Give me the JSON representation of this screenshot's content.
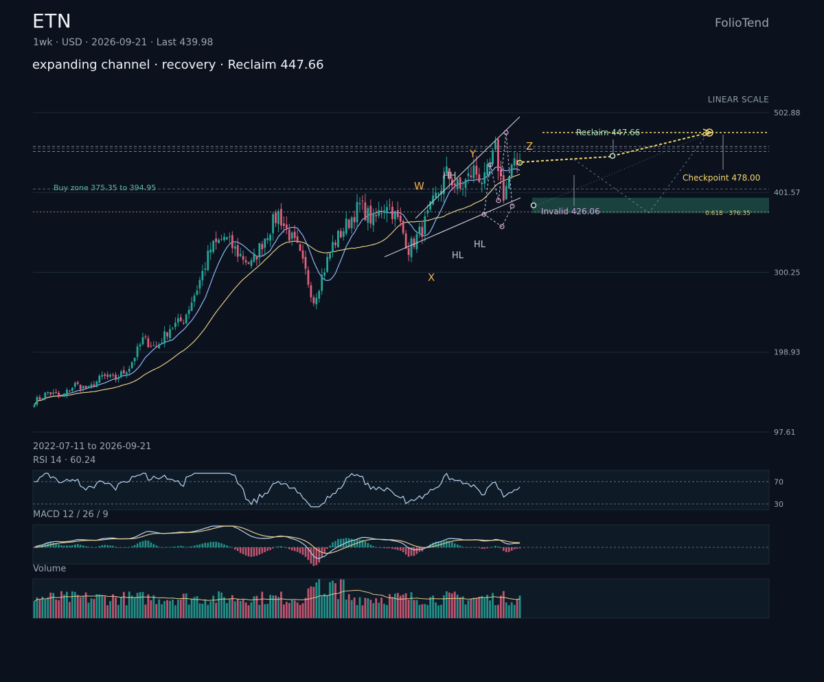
{
  "header": {
    "ticker": "ETN",
    "meta": "1wk · USD · 2026-09-21 · Last 439.98",
    "subtitle": "expanding channel · recovery · Reclaim 447.66",
    "brand": "FolioTend",
    "scale": "LINEAR SCALE",
    "range": "2022-07-11 to 2026-09-21"
  },
  "colors": {
    "background": "#0b121d",
    "up": "#26a69a",
    "down": "#e0607e",
    "ma_fast": "#8fb8ff",
    "ma_slow": "#e8c98a",
    "accent": "#f5d76e",
    "wave_label": "#f0b04a",
    "zone": "#1f4a45"
  },
  "chart_data": {
    "type": "candlestick",
    "interval": "1wk",
    "start_date": "2022-07-11",
    "end_date": "2026-09-21",
    "last": 439.98,
    "y_ticks": [
      502.88,
      401.57,
      300.25,
      198.93,
      97.61
    ],
    "ylim": [
      97.61,
      502.88
    ],
    "levels": {
      "reclaim": 447.66,
      "checkpoint": 478.0,
      "invalid": 426.06,
      "fib_0618": 376.35,
      "buy_zone": [
        375.35,
        394.95
      ]
    },
    "labels": {
      "reclaim": "Reclaim 447.66",
      "checkpoint": "Checkpoint 478.00",
      "invalid": "Invalid 426.06",
      "fib": "0.618 · 376.35",
      "buy_zone": "Buy zone 375.35 to 394.95"
    },
    "wave_labels": [
      "W",
      "X",
      "Y",
      "Z"
    ],
    "structure_labels": [
      "HH",
      "HL",
      "HL"
    ],
    "anchors": [
      {
        "i": 0,
        "v": 136
      },
      {
        "i": 5,
        "v": 148
      },
      {
        "i": 10,
        "v": 142
      },
      {
        "i": 15,
        "v": 158
      },
      {
        "i": 20,
        "v": 152
      },
      {
        "i": 25,
        "v": 168
      },
      {
        "i": 30,
        "v": 165
      },
      {
        "i": 35,
        "v": 180
      },
      {
        "i": 40,
        "v": 215
      },
      {
        "i": 45,
        "v": 205
      },
      {
        "i": 50,
        "v": 230
      },
      {
        "i": 55,
        "v": 240
      },
      {
        "i": 60,
        "v": 280
      },
      {
        "i": 65,
        "v": 330
      },
      {
        "i": 70,
        "v": 345
      },
      {
        "i": 75,
        "v": 325
      },
      {
        "i": 80,
        "v": 310
      },
      {
        "i": 85,
        "v": 345
      },
      {
        "i": 90,
        "v": 375
      },
      {
        "i": 92,
        "v": 360
      },
      {
        "i": 97,
        "v": 330
      },
      {
        "i": 100,
        "v": 300
      },
      {
        "i": 103,
        "v": 265
      },
      {
        "i": 106,
        "v": 295
      },
      {
        "i": 110,
        "v": 335
      },
      {
        "i": 115,
        "v": 360
      },
      {
        "i": 120,
        "v": 385
      },
      {
        "i": 125,
        "v": 365
      },
      {
        "i": 130,
        "v": 390
      },
      {
        "i": 135,
        "v": 360
      },
      {
        "i": 138,
        "v": 330
      },
      {
        "i": 143,
        "v": 355
      },
      {
        "i": 148,
        "v": 395
      },
      {
        "i": 152,
        "v": 425
      },
      {
        "i": 157,
        "v": 405
      },
      {
        "i": 162,
        "v": 430
      },
      {
        "i": 166,
        "v": 415
      },
      {
        "i": 170,
        "v": 455
      },
      {
        "i": 173,
        "v": 400
      },
      {
        "i": 176,
        "v": 430
      },
      {
        "i": 179,
        "v": 439.98
      }
    ],
    "rsi": {
      "label": "RSI 14 · 60.24",
      "period": 14,
      "last": 60.24,
      "levels": [
        70,
        30
      ]
    },
    "macd": {
      "label": "MACD 12 / 26 / 9",
      "fast": 12,
      "slow": 26,
      "signal": 9
    },
    "volume": {
      "label": "Volume"
    }
  }
}
